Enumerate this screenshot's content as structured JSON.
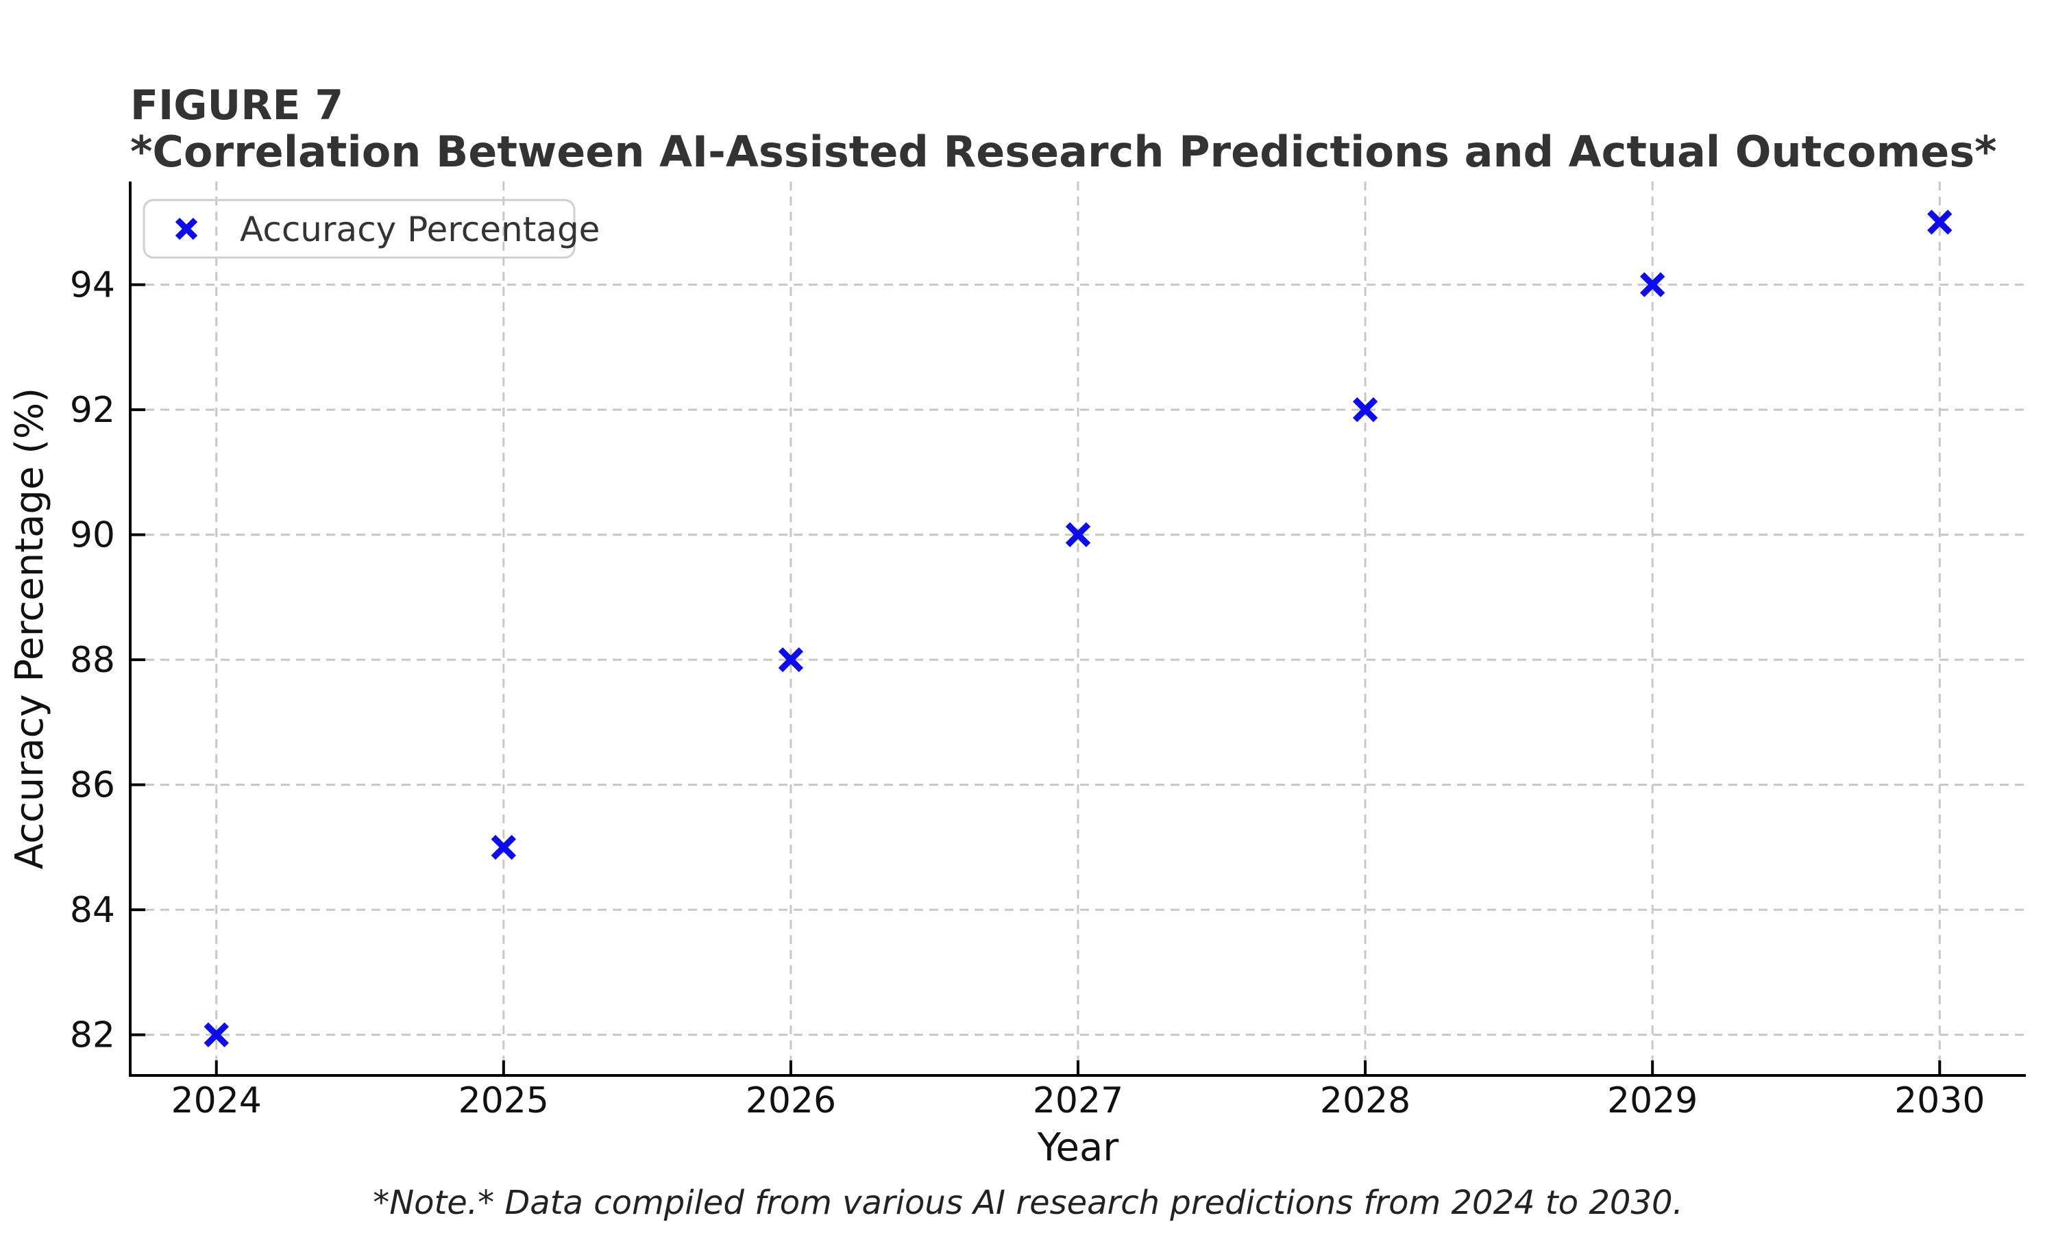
{
  "figure": {
    "title_line1": "FIGURE 7",
    "title_line2": "*Correlation Between AI-Assisted Research Predictions and Actual Outcomes*",
    "note": "*Note.* Data compiled from various AI research predictions from 2024 to 2030."
  },
  "chart_data": {
    "type": "scatter",
    "title": "FIGURE 7",
    "subtitle": "*Correlation Between AI-Assisted Research Predictions and Actual Outcomes*",
    "x": [
      2024,
      2025,
      2026,
      2027,
      2028,
      2029,
      2030
    ],
    "series": [
      {
        "name": "Accuracy Percentage",
        "values": [
          82,
          85,
          88,
          90,
          92,
          94,
          95
        ]
      }
    ],
    "xlabel": "Year",
    "ylabel": "Accuracy Percentage (%)",
    "x_tick_labels": [
      "2024",
      "2025",
      "2026",
      "2027",
      "2028",
      "2029",
      "2030"
    ],
    "y_tick_values": [
      82,
      84,
      86,
      88,
      90,
      92,
      94
    ],
    "xlim": [
      2023.7,
      2030.3
    ],
    "ylim": [
      81.35,
      95.65
    ],
    "grid": true,
    "grid_style": "dashed",
    "marker": "x",
    "legend": {
      "label": "Accuracy Percentage",
      "position": "upper-left",
      "marker": "x"
    },
    "annotation": "*Note.* Data compiled from various AI research predictions from 2024 to 2030.",
    "colors": {
      "marker": "#0b0bee",
      "grid": "#c8c8c8",
      "spine": "#000000",
      "tick_label": "#111111",
      "title": "#333333",
      "legend_border": "#cfcfcf",
      "background": "#ffffff"
    }
  }
}
